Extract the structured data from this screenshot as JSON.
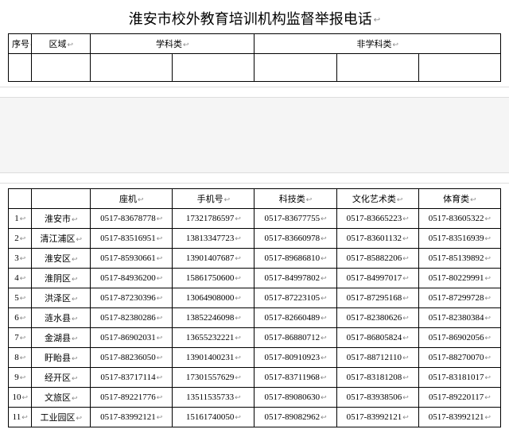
{
  "title": "淮安市校外教育培训机构监督举报电话",
  "top_header": {
    "idx": "序号",
    "region": "区域",
    "subject": "学科类",
    "nonsubject": "非学科类"
  },
  "sub_header": {
    "landline": "座机",
    "mobile": "手机号",
    "tech": "科技类",
    "art": "文化艺术类",
    "sport": "体育类"
  },
  "rows": [
    {
      "idx": "1",
      "region": "淮安市",
      "landline": "0517-83678778",
      "mobile": "17321786597",
      "tech": "0517-83677755",
      "art": "0517-83665223",
      "sport": "0517-83605322"
    },
    {
      "idx": "2",
      "region": "清江浦区",
      "landline": "0517-83516951",
      "mobile": "13813347723",
      "tech": "0517-83660978",
      "art": "0517-83601132",
      "sport": "0517-83516939"
    },
    {
      "idx": "3",
      "region": "淮安区",
      "landline": "0517-85930661",
      "mobile": "13901407687",
      "tech": "0517-89686810",
      "art": "0517-85882206",
      "sport": "0517-85139892"
    },
    {
      "idx": "4",
      "region": "淮阴区",
      "landline": "0517-84936200",
      "mobile": "15861750600",
      "tech": "0517-84997802",
      "art": "0517-84997017",
      "sport": "0517-80229991"
    },
    {
      "idx": "5",
      "region": "洪泽区",
      "landline": "0517-87230396",
      "mobile": "13064908000",
      "tech": "0517-87223105",
      "art": "0517-87295168",
      "sport": "0517-87299728"
    },
    {
      "idx": "6",
      "region": "涟水县",
      "landline": "0517-82380286",
      "mobile": "13852246098",
      "tech": "0517-82660489",
      "art": "0517-82380626",
      "sport": "0517-82380384"
    },
    {
      "idx": "7",
      "region": "金湖县",
      "landline": "0517-86902031",
      "mobile": "13655232221",
      "tech": "0517-86880712",
      "art": "0517-86805824",
      "sport": "0517-86902056"
    },
    {
      "idx": "8",
      "region": "盱眙县",
      "landline": "0517-88236050",
      "mobile": "13901400231",
      "tech": "0517-80910923",
      "art": "0517-88712110",
      "sport": "0517-88270070"
    },
    {
      "idx": "9",
      "region": "经开区",
      "landline": "0517-83717114",
      "mobile": "17301557629",
      "tech": "0517-83711968",
      "art": "0517-83181208",
      "sport": "0517-83181017"
    },
    {
      "idx": "10",
      "region": "文旅区",
      "landline": "0517-89221776",
      "mobile": "13511535733",
      "tech": "0517-89080630",
      "art": "0517-83938506",
      "sport": "0517-89220117"
    },
    {
      "idx": "11",
      "region": "工业园区",
      "landline": "0517-83992121",
      "mobile": "15161740050",
      "tech": "0517-89082962",
      "art": "0517-83992121",
      "sport": "0517-83992121"
    }
  ],
  "colors": {
    "bg": "#ffffff",
    "border": "#000000",
    "gap_bg": "#f5f5f5"
  }
}
